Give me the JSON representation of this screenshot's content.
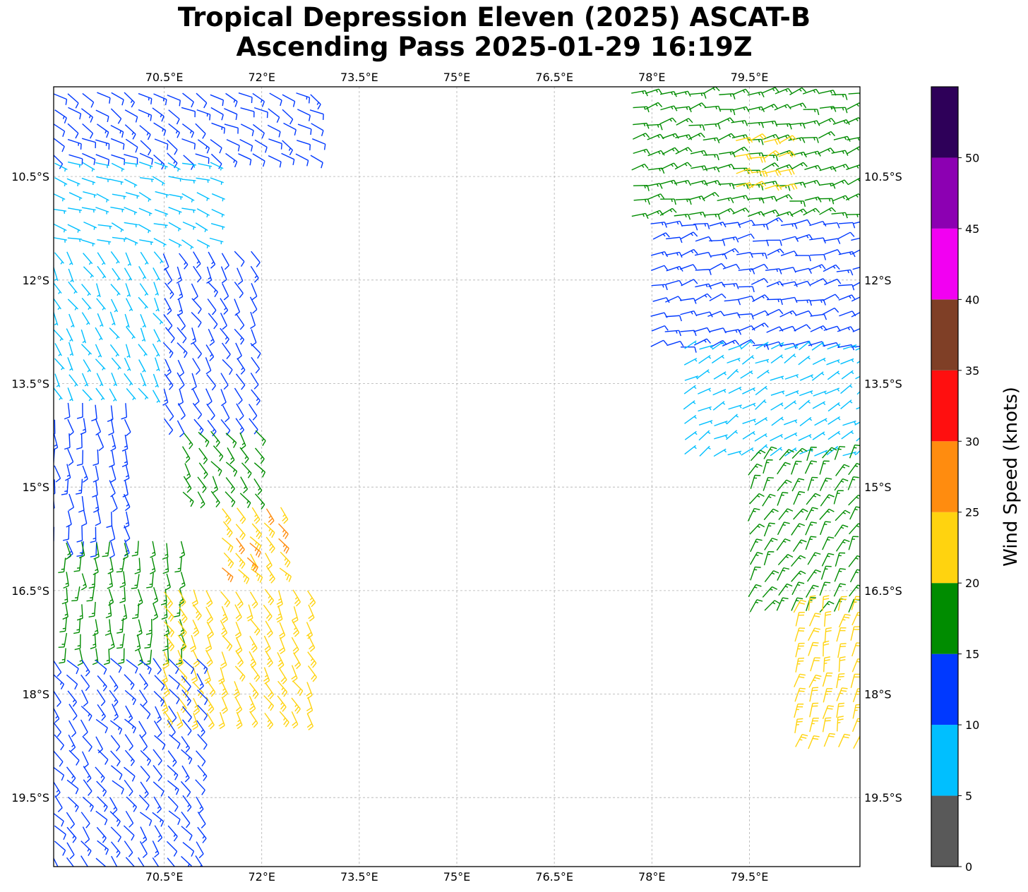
{
  "title": {
    "line1": "Tropical Depression Eleven (2025) ASCAT-B",
    "line2": "Ascending Pass 2025-01-29 16:19Z"
  },
  "map": {
    "lon_range": [
      68.8,
      81.2
    ],
    "lat_range": [
      -20.5,
      -9.2
    ],
    "lon_ticks": [
      {
        "value": 70.5,
        "label": "70.5°E"
      },
      {
        "value": 72,
        "label": "72°E"
      },
      {
        "value": 73.5,
        "label": "73.5°E"
      },
      {
        "value": 75,
        "label": "75°E"
      },
      {
        "value": 76.5,
        "label": "76.5°E"
      },
      {
        "value": 78,
        "label": "78°E"
      },
      {
        "value": 79.5,
        "label": "79.5°E"
      }
    ],
    "lat_ticks": [
      {
        "value": -10.5,
        "label": "10.5°S"
      },
      {
        "value": -12,
        "label": "12°S"
      },
      {
        "value": -13.5,
        "label": "13.5°S"
      },
      {
        "value": -15,
        "label": "15°S"
      },
      {
        "value": -16.5,
        "label": "16.5°S"
      },
      {
        "value": -18,
        "label": "18°S"
      },
      {
        "value": -19.5,
        "label": "19.5°S"
      }
    ],
    "grid": true,
    "gridlines": "dashed"
  },
  "colorbar": {
    "label": "Wind Speed (knots)",
    "ticks": [
      "0",
      "5",
      "10",
      "15",
      "20",
      "25",
      "30",
      "35",
      "40",
      "45",
      "50"
    ],
    "bins": [
      {
        "min": 0,
        "max": 5,
        "color": "#595959"
      },
      {
        "min": 5,
        "max": 10,
        "color": "#00bfff"
      },
      {
        "min": 10,
        "max": 15,
        "color": "#0039ff"
      },
      {
        "min": 15,
        "max": 20,
        "color": "#008c00"
      },
      {
        "min": 20,
        "max": 25,
        "color": "#ffd30f"
      },
      {
        "min": 25,
        "max": 30,
        "color": "#ff8c0f"
      },
      {
        "min": 30,
        "max": 35,
        "color": "#ff0f0f"
      },
      {
        "min": 35,
        "max": 40,
        "color": "#7f3f26"
      },
      {
        "min": 40,
        "max": 45,
        "color": "#f200f2"
      },
      {
        "min": 45,
        "max": 50,
        "color": "#8c00b2"
      },
      {
        "min": 50,
        "max": 55,
        "color": "#2e0059"
      }
    ]
  },
  "wind_regions": [
    {
      "name": "west-swath",
      "lon": [
        68.8,
        72.8
      ],
      "lat": [
        -9.3,
        -10.3
      ],
      "speed_kt": 12,
      "dir_deg": 120
    },
    {
      "name": "west-swath",
      "lon": [
        68.8,
        71.4
      ],
      "lat": [
        -10.3,
        -11.6
      ],
      "speed_kt": 7,
      "dir_deg": 110
    },
    {
      "name": "west-swath",
      "lon": [
        68.8,
        70.5
      ],
      "lat": [
        -11.6,
        -13.8
      ],
      "speed_kt": 8,
      "dir_deg": 150
    },
    {
      "name": "west-swath",
      "lon": [
        70.5,
        72.0
      ],
      "lat": [
        -11.6,
        -14.2
      ],
      "speed_kt": 12,
      "dir_deg": 150
    },
    {
      "name": "west-swath",
      "lon": [
        68.8,
        70.0
      ],
      "lat": [
        -13.8,
        -16.0
      ],
      "speed_kt": 12,
      "dir_deg": 170
    },
    {
      "name": "west-swath",
      "lon": [
        70.8,
        72.0
      ],
      "lat": [
        -14.2,
        -15.2
      ],
      "speed_kt": 17,
      "dir_deg": 145
    },
    {
      "name": "west-swath",
      "lon": [
        71.4,
        72.3
      ],
      "lat": [
        -15.3,
        -16.3
      ],
      "speed_kt": 24,
      "dir_deg": 140
    },
    {
      "name": "west-swath",
      "lon": [
        71.8,
        72.0
      ],
      "lat": [
        -15.8,
        -16.2
      ],
      "speed_kt": 27,
      "dir_deg": 140
    },
    {
      "name": "west-swath",
      "lon": [
        69.0,
        70.8
      ],
      "lat": [
        -15.8,
        -17.5
      ],
      "speed_kt": 17,
      "dir_deg": 175
    },
    {
      "name": "west-swath",
      "lon": [
        70.5,
        72.8
      ],
      "lat": [
        -16.5,
        -18.3
      ],
      "speed_kt": 22,
      "dir_deg": 150
    },
    {
      "name": "west-swath",
      "lon": [
        68.8,
        71.2
      ],
      "lat": [
        -17.5,
        -20.5
      ],
      "speed_kt": 12,
      "dir_deg": 140
    },
    {
      "name": "east-swath",
      "lon": [
        77.7,
        81.2
      ],
      "lat": [
        -9.3,
        -11.2
      ],
      "speed_kt": 17,
      "dir_deg": 75
    },
    {
      "name": "east-swath",
      "lon": [
        79.3,
        80.0
      ],
      "lat": [
        -10.0,
        -10.7
      ],
      "speed_kt": 22,
      "dir_deg": 70
    },
    {
      "name": "east-swath",
      "lon": [
        78.0,
        81.2
      ],
      "lat": [
        -11.2,
        -13.0
      ],
      "speed_kt": 12,
      "dir_deg": 75
    },
    {
      "name": "east-swath",
      "lon": [
        78.5,
        81.2
      ],
      "lat": [
        -13.0,
        -14.6
      ],
      "speed_kt": 8,
      "dir_deg": 60
    },
    {
      "name": "east-swath",
      "lon": [
        79.5,
        81.2
      ],
      "lat": [
        -14.6,
        -16.8
      ],
      "speed_kt": 17,
      "dir_deg": 30
    },
    {
      "name": "east-swath",
      "lon": [
        80.2,
        81.2
      ],
      "lat": [
        -16.8,
        -18.8
      ],
      "speed_kt": 22,
      "dir_deg": 15
    }
  ]
}
